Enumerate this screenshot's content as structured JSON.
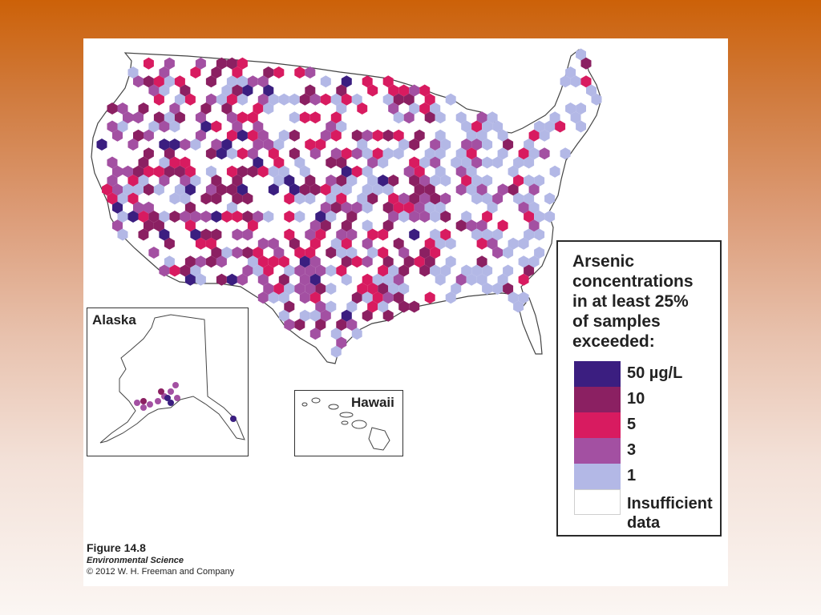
{
  "map": {
    "alaska_label": "Alaska",
    "hawaii_label": "Hawaii"
  },
  "legend": {
    "title": "Arsenic concentrations in at least 25% of samples exceeded:",
    "items": [
      {
        "label": "50 µg/L",
        "color": "#3b1e80"
      },
      {
        "label": "10",
        "color": "#8b2062"
      },
      {
        "label": "5",
        "color": "#d81b60"
      },
      {
        "label": "3",
        "color": "#a350a2"
      },
      {
        "label": "1",
        "color": "#b3b8e6"
      },
      {
        "label": "Insufficient data",
        "color": "#ffffff"
      }
    ]
  },
  "caption": {
    "figure": "Figure 14.8",
    "book": "Environmental Science",
    "copyright": "© 2012 W. H. Freeman and Company"
  }
}
